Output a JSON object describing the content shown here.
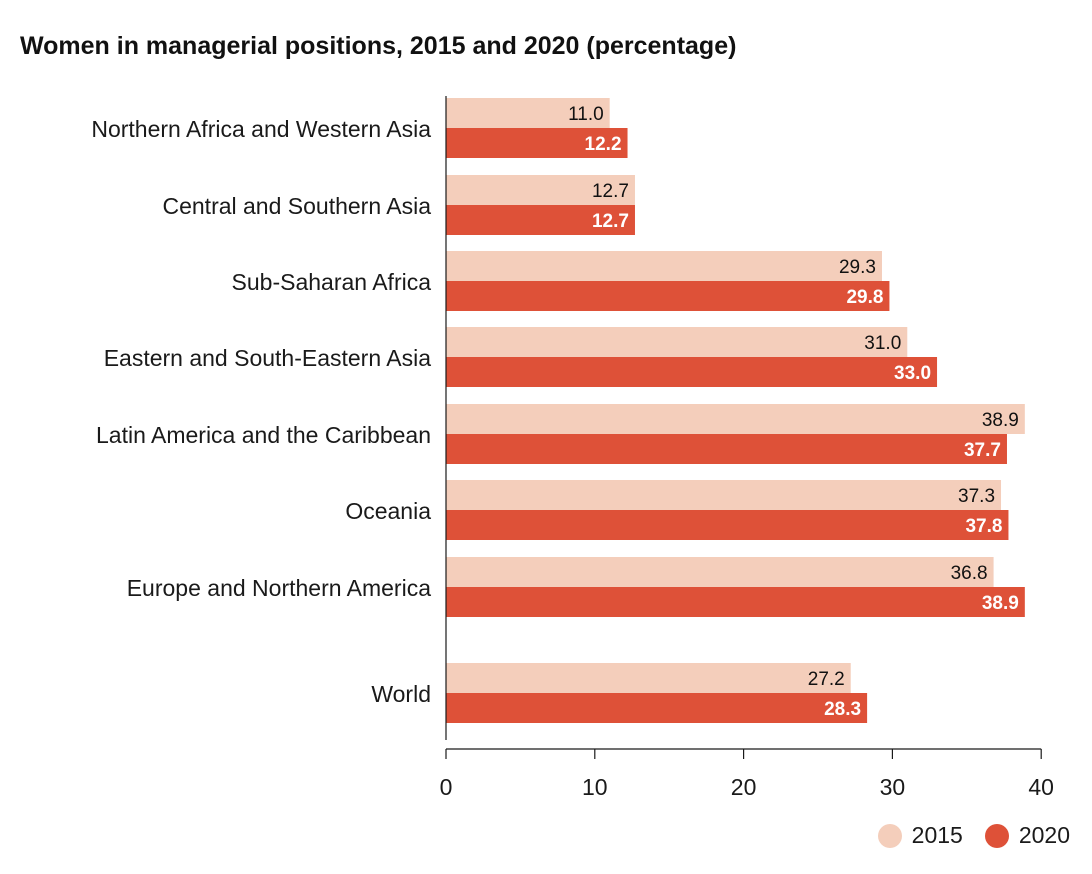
{
  "colors": {
    "s2015": "#f4cebb",
    "s2020": "#de5138",
    "axis": "#1a1a1a"
  },
  "chart_data": {
    "type": "bar",
    "orientation": "horizontal",
    "title": "Women in managerial positions, 2015 and 2020 (percentage)",
    "categories": [
      "Northern Africa and Western Asia",
      "Central and Southern Asia",
      "Sub-Saharan Africa",
      "Eastern and South-Eastern Asia",
      "Latin America and the Caribbean",
      "Oceania",
      "Europe and Northern America",
      "World"
    ],
    "series": [
      {
        "name": "2015",
        "values": [
          11.0,
          12.7,
          29.3,
          31.0,
          38.9,
          37.3,
          36.8,
          27.2
        ]
      },
      {
        "name": "2020",
        "values": [
          12.2,
          12.7,
          29.8,
          33.0,
          37.7,
          37.8,
          38.9,
          28.3
        ]
      }
    ],
    "xlim": [
      0,
      40
    ],
    "xticks": [
      0,
      10,
      20,
      30,
      40
    ],
    "legend_position": "bottom-right",
    "xlabel": "",
    "ylabel": ""
  },
  "legend": {
    "label_2015": "2015",
    "label_2020": "2020"
  }
}
